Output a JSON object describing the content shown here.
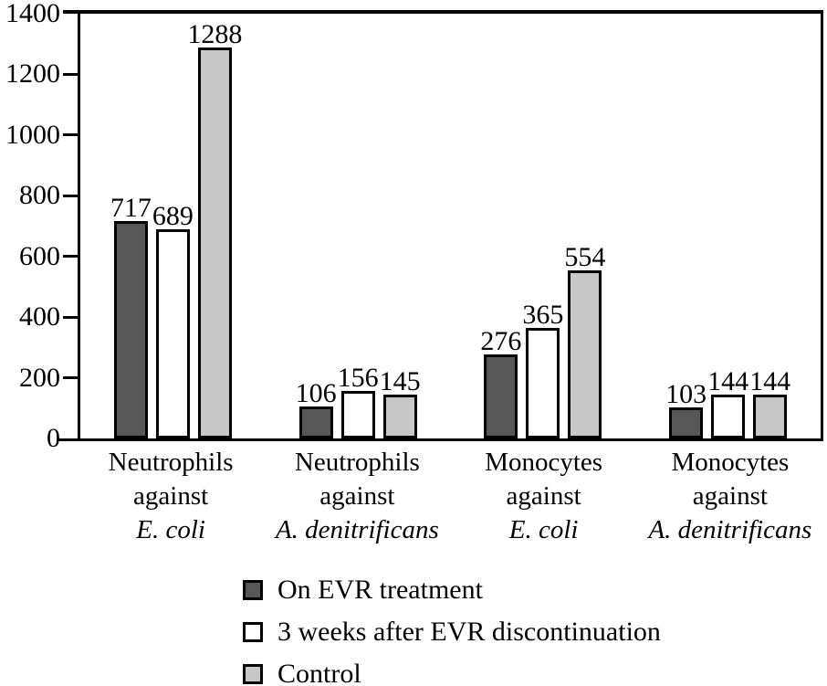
{
  "figure": {
    "background": "#ffffff",
    "text_color": "#000000",
    "axis_color": "#000000"
  },
  "chart_data": {
    "type": "bar",
    "title": "",
    "xlabel": "",
    "ylabel": "",
    "ylim": [
      0,
      1400
    ],
    "yticks": [
      0,
      200,
      400,
      600,
      800,
      1000,
      1200,
      1400
    ],
    "grid": false,
    "value_labels_shown": true,
    "legend_position": "bottom-left",
    "categories": [
      {
        "line1": "Neutrophils",
        "line2": "against",
        "line3": "E. coli"
      },
      {
        "line1": "Neutrophils",
        "line2": "against",
        "line3": "A. denitrificans"
      },
      {
        "line1": "Monocytes",
        "line2": "against",
        "line3": "E. coli"
      },
      {
        "line1": "Monocytes",
        "line2": "against",
        "line3": "A. denitrificans"
      }
    ],
    "series": [
      {
        "name": "On EVR treatment",
        "fill": "#575757",
        "stroke": "#000000",
        "values": [
          717,
          106,
          276,
          103
        ]
      },
      {
        "name": "3 weeks after EVR discontinuation",
        "fill": "#ffffff",
        "stroke": "#000000",
        "values": [
          689,
          156,
          365,
          144
        ]
      },
      {
        "name": "Control",
        "fill": "#c8c8c8",
        "stroke": "#000000",
        "values": [
          1288,
          145,
          554,
          144
        ]
      }
    ]
  }
}
